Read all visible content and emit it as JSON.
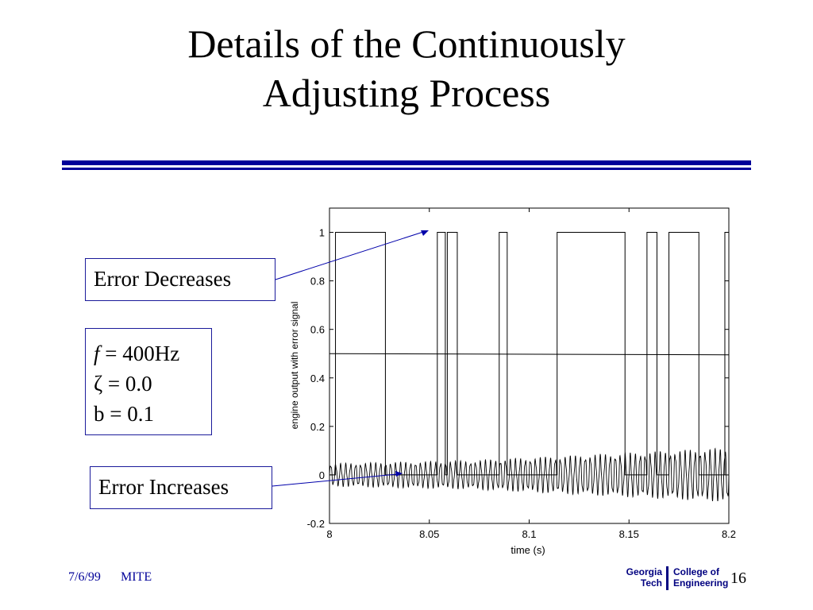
{
  "slide": {
    "title_line1": "Details of the Continuously",
    "title_line2": "Adjusting Process",
    "rule_color": "#000099"
  },
  "callouts": {
    "error_decreases": "Error Decreases",
    "error_increases": "Error Increases"
  },
  "params": {
    "f_symbol": "f",
    "f_value": " = 400Hz",
    "zeta": "ζ = 0.0",
    "b": "b = 0.1"
  },
  "footer": {
    "date": "7/6/99",
    "org": "MITE",
    "page": "16",
    "logo_left_line1": "Georgia",
    "logo_left_line2": "Tech",
    "logo_right_line1": "College of",
    "logo_right_line2": "Engineering"
  },
  "chart_data": {
    "type": "line",
    "xlabel": "time (s)",
    "ylabel": "engine output with error signal",
    "xlim": [
      8,
      8.2
    ],
    "ylim": [
      -0.2,
      1.1
    ],
    "xticks": [
      "8",
      "8.05",
      "8.1",
      "8.15",
      "8.2"
    ],
    "yticks": [
      "-0.2",
      "0",
      "0.2",
      "0.4",
      "0.6",
      "0.8",
      "1"
    ],
    "grid": false,
    "series": [
      {
        "kind": "square_wave",
        "low": 0,
        "high": 1,
        "high_intervals": [
          [
            8.003,
            8.028
          ],
          [
            8.054,
            8.058
          ],
          [
            8.059,
            8.064
          ],
          [
            8.085,
            8.089
          ],
          [
            8.114,
            8.148
          ],
          [
            8.159,
            8.164
          ],
          [
            8.17,
            8.185
          ],
          [
            8.198,
            8.2
          ]
        ]
      },
      {
        "kind": "threshold",
        "points": [
          [
            8,
            0.5
          ],
          [
            8.2,
            0.495
          ]
        ]
      },
      {
        "kind": "oscillation",
        "frequency_hz": 400,
        "envelope": [
          [
            8,
            0.04
          ],
          [
            8.07,
            0.05
          ],
          [
            8.2,
            0.095
          ]
        ],
        "offset": 0
      }
    ],
    "annotations": [
      "Error Decreases",
      "Error Increases"
    ]
  }
}
